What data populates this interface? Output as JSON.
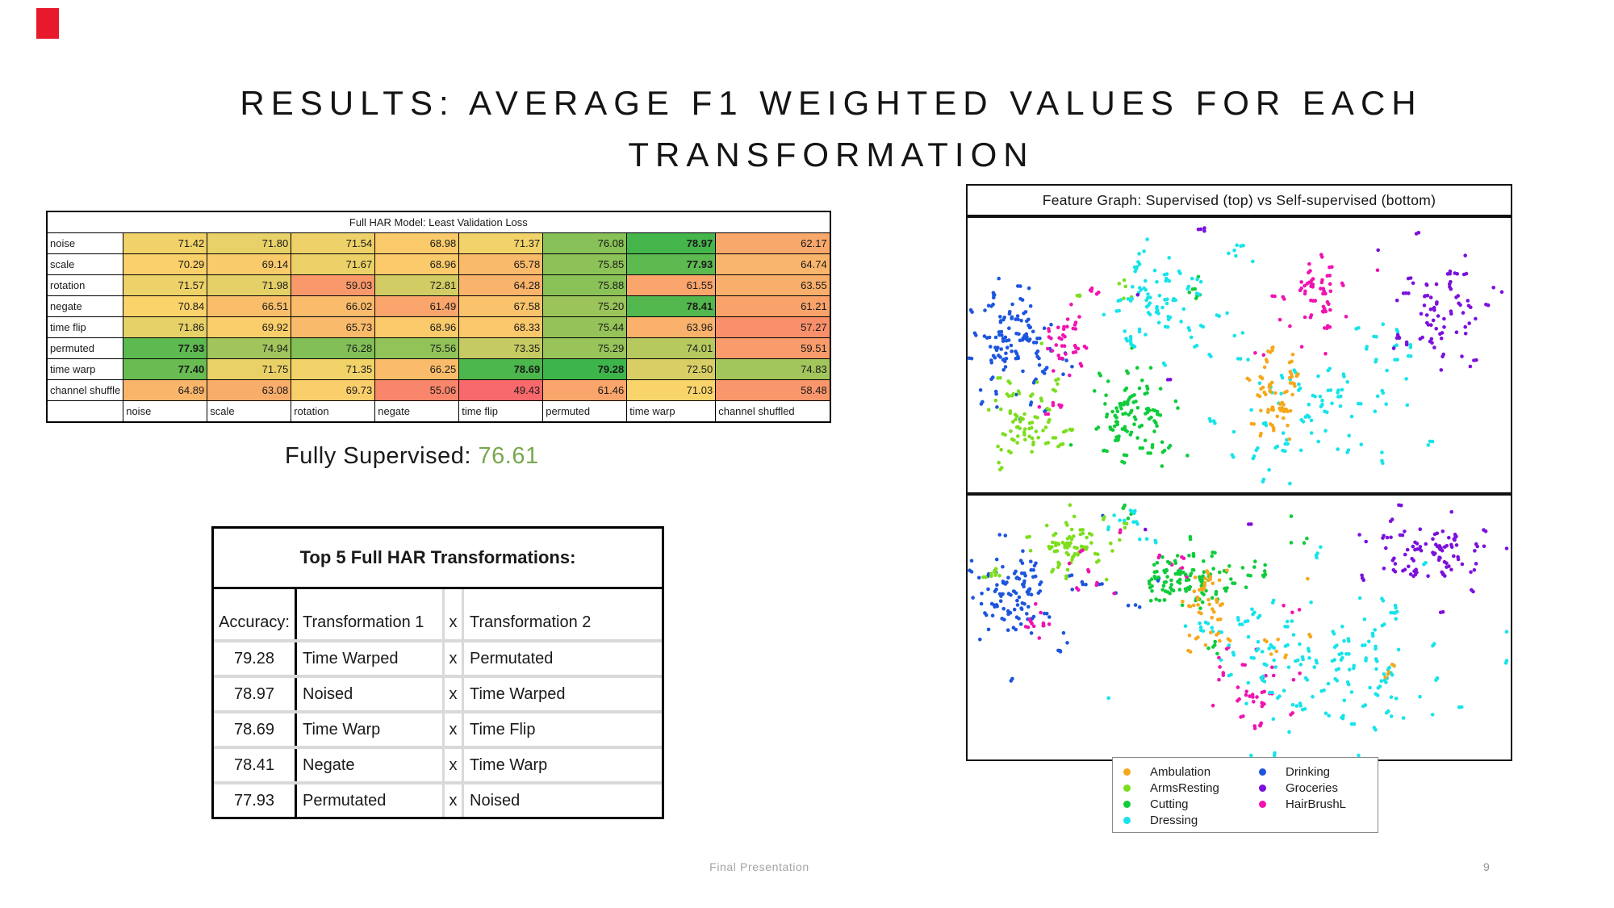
{
  "slide": {
    "title_line1": "RESULTS: AVERAGE F1 WEIGHTED VALUES FOR EACH",
    "title_line2": "TRANSFORMATION",
    "footer": "Final Presentation",
    "page_number": "9",
    "red_marker_color": "#e8192c"
  },
  "heatmap": {
    "title": "Full HAR Model: Least Validation Loss",
    "row_labels": [
      "noise",
      "scale",
      "rotation",
      "negate",
      "time flip",
      "permuted",
      "time warp",
      "channel shuffle"
    ],
    "col_labels": [
      "noise",
      "scale",
      "rotation",
      "negate",
      "time flip",
      "permuted",
      "time warp",
      "channel shuffled"
    ],
    "values": [
      [
        71.42,
        71.8,
        71.54,
        68.98,
        71.37,
        76.08,
        78.97,
        62.17
      ],
      [
        70.29,
        69.14,
        71.67,
        68.96,
        65.78,
        75.85,
        77.93,
        64.74
      ],
      [
        71.57,
        71.98,
        59.03,
        72.81,
        64.28,
        75.88,
        61.55,
        63.55
      ],
      [
        70.84,
        66.51,
        66.02,
        61.49,
        67.58,
        75.2,
        78.41,
        61.21
      ],
      [
        71.86,
        69.92,
        65.73,
        68.96,
        68.33,
        75.44,
        63.96,
        57.27
      ],
      [
        77.93,
        74.94,
        76.28,
        75.56,
        73.35,
        75.29,
        74.01,
        59.51
      ],
      [
        77.4,
        71.75,
        71.35,
        66.25,
        78.69,
        79.28,
        72.5,
        74.83
      ],
      [
        64.89,
        63.08,
        69.73,
        55.06,
        49.43,
        61.46,
        71.03,
        58.48
      ]
    ],
    "color_scale": {
      "min": 49.43,
      "mid": 71.0,
      "max": 79.28,
      "min_color": "#f8696b",
      "mid_color": "#fad46b",
      "max_color": "#3eb54b"
    },
    "bold_threshold": 77
  },
  "fully_supervised": {
    "label": "Fully Supervised: ",
    "value": "76.61",
    "value_color": "#76a84e"
  },
  "top5": {
    "title": "Top 5 Full HAR Transformations:",
    "headers": [
      "Accuracy:",
      "Transformation 1",
      "x",
      "Transformation 2"
    ],
    "rows": [
      [
        "79.28",
        "Time Warped",
        "x",
        "Permutated"
      ],
      [
        "78.97",
        "Noised",
        "x",
        "Time Warped"
      ],
      [
        "78.69",
        "Time Warp",
        "x",
        "Time Flip"
      ],
      [
        "78.41",
        "Negate",
        "x",
        "Time Warp"
      ],
      [
        "77.93",
        "Permutated",
        "x",
        "Noised"
      ]
    ]
  },
  "feature_graph": {
    "title": "Feature Graph: Supervised (top) vs Self-supervised (bottom)",
    "legend_left": [
      {
        "label": "Ambulation",
        "class": "ambulation"
      },
      {
        "label": "ArmsResting",
        "class": "armsresting"
      },
      {
        "label": "Cutting",
        "class": "cutting"
      },
      {
        "label": "Dressing",
        "class": "dressing"
      }
    ],
    "legend_right": [
      {
        "label": "Drinking",
        "class": "drinking"
      },
      {
        "label": "Groceries",
        "class": "groceries"
      },
      {
        "label": "HairBrushL",
        "class": "hairbrushl"
      }
    ]
  },
  "chart_data": {
    "type": "scatter",
    "title": "Feature Graph: Supervised (top) vs Self-supervised (bottom)",
    "legend_position": "bottom",
    "classes": {
      "ambulation": "#f5a81c",
      "armsresting": "#7cde1d",
      "cutting": "#0ecc3a",
      "dressing": "#17e3ea",
      "drinking": "#1d55de",
      "groceries": "#7b10dc",
      "hairbrushl": "#f013b0"
    },
    "panels": [
      {
        "name": "supervised",
        "clusters": [
          {
            "class": "drinking",
            "cx": 0.08,
            "cy": 0.45,
            "sx": 0.035,
            "sy": 0.115,
            "n": 85
          },
          {
            "class": "drinking",
            "cx": 0.185,
            "cy": 0.525,
            "sx": 0.012,
            "sy": 0.02,
            "n": 6
          },
          {
            "class": "hairbrushl",
            "cx": 0.175,
            "cy": 0.455,
            "sx": 0.022,
            "sy": 0.065,
            "n": 26
          },
          {
            "class": "hairbrushl",
            "cx": 0.152,
            "cy": 0.69,
            "sx": 0.012,
            "sy": 0.015,
            "n": 5
          },
          {
            "class": "hairbrushl",
            "cx": 0.225,
            "cy": 0.265,
            "sx": 0.01,
            "sy": 0.012,
            "n": 3
          },
          {
            "class": "hairbrushl",
            "cx": 0.645,
            "cy": 0.285,
            "sx": 0.038,
            "sy": 0.082,
            "n": 40
          },
          {
            "class": "hairbrushl",
            "cx": 0.545,
            "cy": 0.5,
            "sx": 0.005,
            "sy": 0.008,
            "n": 2
          },
          {
            "class": "armsresting",
            "cx": 0.115,
            "cy": 0.735,
            "sx": 0.038,
            "sy": 0.082,
            "n": 58
          },
          {
            "class": "armsresting",
            "cx": 0.285,
            "cy": 0.255,
            "sx": 0.012,
            "sy": 0.03,
            "n": 5
          },
          {
            "class": "armsresting",
            "cx": 0.205,
            "cy": 0.275,
            "sx": 0.006,
            "sy": 0.01,
            "n": 2
          },
          {
            "class": "armsresting",
            "cx": 0.14,
            "cy": 0.455,
            "sx": 0.004,
            "sy": 0.006,
            "n": 1
          },
          {
            "class": "cutting",
            "cx": 0.3,
            "cy": 0.715,
            "sx": 0.048,
            "sy": 0.088,
            "n": 78
          },
          {
            "class": "cutting",
            "cx": 0.425,
            "cy": 0.245,
            "sx": 0.008,
            "sy": 0.05,
            "n": 5
          },
          {
            "class": "cutting",
            "cx": 0.305,
            "cy": 0.46,
            "sx": 0.004,
            "sy": 0.006,
            "n": 1
          },
          {
            "class": "dressing",
            "cx": 0.35,
            "cy": 0.295,
            "sx": 0.045,
            "sy": 0.1,
            "n": 62
          },
          {
            "class": "dressing",
            "cx": 0.5,
            "cy": 0.135,
            "sx": 0.018,
            "sy": 0.025,
            "n": 6
          },
          {
            "class": "dressing",
            "cx": 0.655,
            "cy": 0.7,
            "sx": 0.115,
            "sy": 0.125,
            "n": 72
          },
          {
            "class": "dressing",
            "cx": 0.78,
            "cy": 0.43,
            "sx": 0.025,
            "sy": 0.075,
            "n": 8
          },
          {
            "class": "dressing",
            "cx": 0.47,
            "cy": 0.42,
            "sx": 0.045,
            "sy": 0.06,
            "n": 8
          },
          {
            "class": "ambulation",
            "cx": 0.575,
            "cy": 0.645,
            "sx": 0.028,
            "sy": 0.085,
            "n": 46
          },
          {
            "class": "groceries",
            "cx": 0.875,
            "cy": 0.35,
            "sx": 0.048,
            "sy": 0.098,
            "n": 66
          },
          {
            "class": "groceries",
            "cx": 0.425,
            "cy": 0.04,
            "sx": 0.007,
            "sy": 0.008,
            "n": 3
          },
          {
            "class": "groceries",
            "cx": 0.31,
            "cy": 0.28,
            "sx": 0.003,
            "sy": 0.004,
            "n": 1
          },
          {
            "class": "groceries",
            "cx": 0.375,
            "cy": 0.585,
            "sx": 0.003,
            "sy": 0.004,
            "n": 1
          }
        ]
      },
      {
        "name": "self-supervised",
        "clusters": [
          {
            "class": "drinking",
            "cx": 0.082,
            "cy": 0.375,
            "sx": 0.032,
            "sy": 0.105,
            "n": 78
          },
          {
            "class": "drinking",
            "cx": 0.24,
            "cy": 0.38,
            "sx": 0.045,
            "sy": 0.055,
            "n": 10
          },
          {
            "class": "drinking",
            "cx": 0.245,
            "cy": 0.075,
            "sx": 0.004,
            "sy": 0.005,
            "n": 1
          },
          {
            "class": "drinking",
            "cx": 0.36,
            "cy": 0.315,
            "sx": 0.004,
            "sy": 0.005,
            "n": 1
          },
          {
            "class": "drinking",
            "cx": 0.185,
            "cy": 0.56,
            "sx": 0.008,
            "sy": 0.02,
            "n": 4
          },
          {
            "class": "armsresting",
            "cx": 0.185,
            "cy": 0.21,
            "sx": 0.032,
            "sy": 0.05,
            "n": 52
          },
          {
            "class": "armsresting",
            "cx": 0.046,
            "cy": 0.29,
            "sx": 0.012,
            "sy": 0.02,
            "n": 6
          },
          {
            "class": "armsresting",
            "cx": 0.285,
            "cy": 0.115,
            "sx": 0.01,
            "sy": 0.02,
            "n": 4
          },
          {
            "class": "armsresting",
            "cx": 0.19,
            "cy": 0.035,
            "sx": 0.004,
            "sy": 0.005,
            "n": 1
          },
          {
            "class": "hairbrushl",
            "cx": 0.135,
            "cy": 0.465,
            "sx": 0.013,
            "sy": 0.035,
            "n": 10
          },
          {
            "class": "hairbrushl",
            "cx": 0.215,
            "cy": 0.295,
            "sx": 0.028,
            "sy": 0.04,
            "n": 7
          },
          {
            "class": "hairbrushl",
            "cx": 0.385,
            "cy": 0.255,
            "sx": 0.014,
            "sy": 0.025,
            "n": 5
          },
          {
            "class": "hairbrushl",
            "cx": 0.53,
            "cy": 0.75,
            "sx": 0.038,
            "sy": 0.085,
            "n": 32
          },
          {
            "class": "hairbrushl",
            "cx": 0.6,
            "cy": 0.42,
            "sx": 0.01,
            "sy": 0.015,
            "n": 3
          },
          {
            "class": "hairbrushl",
            "cx": 0.285,
            "cy": 0.125,
            "sx": 0.004,
            "sy": 0.005,
            "n": 1
          },
          {
            "class": "cutting",
            "cx": 0.4,
            "cy": 0.325,
            "sx": 0.05,
            "sy": 0.055,
            "n": 82
          },
          {
            "class": "cutting",
            "cx": 0.525,
            "cy": 0.27,
            "sx": 0.02,
            "sy": 0.03,
            "n": 9
          },
          {
            "class": "cutting",
            "cx": 0.295,
            "cy": 0.06,
            "sx": 0.01,
            "sy": 0.018,
            "n": 4
          },
          {
            "class": "cutting",
            "cx": 0.46,
            "cy": 0.575,
            "sx": 0.012,
            "sy": 0.015,
            "n": 4
          },
          {
            "class": "cutting",
            "cx": 0.615,
            "cy": 0.175,
            "sx": 0.012,
            "sy": 0.015,
            "n": 3
          },
          {
            "class": "cutting",
            "cx": 0.6,
            "cy": 0.08,
            "sx": 0.004,
            "sy": 0.005,
            "n": 1
          },
          {
            "class": "dressing",
            "cx": 0.295,
            "cy": 0.09,
            "sx": 0.018,
            "sy": 0.02,
            "n": 8
          },
          {
            "class": "dressing",
            "cx": 0.335,
            "cy": 0.16,
            "sx": 0.012,
            "sy": 0.02,
            "n": 4
          },
          {
            "class": "dressing",
            "cx": 0.67,
            "cy": 0.63,
            "sx": 0.135,
            "sy": 0.14,
            "n": 125
          },
          {
            "class": "dressing",
            "cx": 0.655,
            "cy": 0.21,
            "sx": 0.012,
            "sy": 0.015,
            "n": 3
          },
          {
            "class": "dressing",
            "cx": 0.42,
            "cy": 0.47,
            "sx": 0.02,
            "sy": 0.03,
            "n": 5
          },
          {
            "class": "ambulation",
            "cx": 0.44,
            "cy": 0.41,
            "sx": 0.025,
            "sy": 0.1,
            "n": 38
          },
          {
            "class": "ambulation",
            "cx": 0.565,
            "cy": 0.6,
            "sx": 0.03,
            "sy": 0.04,
            "n": 6
          },
          {
            "class": "ambulation",
            "cx": 0.78,
            "cy": 0.67,
            "sx": 0.01,
            "sy": 0.012,
            "n": 3
          },
          {
            "class": "ambulation",
            "cx": 0.63,
            "cy": 0.3,
            "sx": 0.004,
            "sy": 0.005,
            "n": 1
          },
          {
            "class": "groceries",
            "cx": 0.86,
            "cy": 0.2,
            "sx": 0.055,
            "sy": 0.072,
            "n": 68
          },
          {
            "class": "groceries",
            "cx": 0.73,
            "cy": 0.3,
            "sx": 0.006,
            "sy": 0.008,
            "n": 2
          },
          {
            "class": "groceries",
            "cx": 0.325,
            "cy": 0.13,
            "sx": 0.004,
            "sy": 0.005,
            "n": 1
          },
          {
            "class": "groceries",
            "cx": 0.87,
            "cy": 0.44,
            "sx": 0.004,
            "sy": 0.005,
            "n": 1
          },
          {
            "class": "groceries",
            "cx": 0.52,
            "cy": 0.12,
            "sx": 0.004,
            "sy": 0.005,
            "n": 1
          }
        ]
      }
    ]
  }
}
